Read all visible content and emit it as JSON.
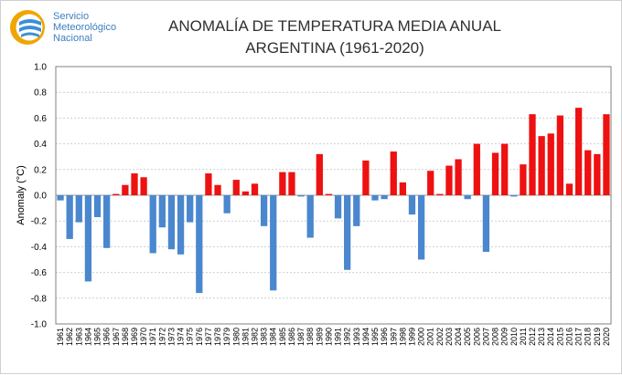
{
  "logo": {
    "line1": "Servicio",
    "line2": "Meteorológico",
    "line3": "Nacional",
    "icon": "smn-logo-icon",
    "colors": {
      "outer": "#f0a500",
      "inner": "#3a8fd6"
    }
  },
  "chart_data": {
    "type": "bar",
    "title_line1": "ANOMALÍA DE TEMPERATURA MEDIA ANUAL",
    "title_line2": "ARGENTINA (1961-2020)",
    "xlabel": "",
    "ylabel": "Anomaly (°C)",
    "ylim": [
      -1.0,
      1.0
    ],
    "yticks": [
      "1.0",
      "0.8",
      "0.6",
      "0.4",
      "0.2",
      "0.0",
      "-0.2",
      "-0.4",
      "-0.6",
      "-0.8",
      "-1.0"
    ],
    "ytick_values": [
      1.0,
      0.8,
      0.6,
      0.4,
      0.2,
      0.0,
      -0.2,
      -0.4,
      -0.6,
      -0.8,
      -1.0
    ],
    "grid": true,
    "categories": [
      "1961",
      "1962",
      "1963",
      "1964",
      "1965",
      "1966",
      "1967",
      "1968",
      "1969",
      "1970",
      "1971",
      "1972",
      "1973",
      "1974",
      "1975",
      "1976",
      "1977",
      "1978",
      "1979",
      "1980",
      "1981",
      "1982",
      "1983",
      "1984",
      "1985",
      "1986",
      "1987",
      "1988",
      "1989",
      "1990",
      "1991",
      "1992",
      "1993",
      "1994",
      "1995",
      "1996",
      "1997",
      "1998",
      "1999",
      "2000",
      "2001",
      "2002",
      "2003",
      "2004",
      "2005",
      "2006",
      "2007",
      "2008",
      "2009",
      "2010",
      "2011",
      "2012",
      "2013",
      "2014",
      "2015",
      "2016",
      "2017",
      "2018",
      "2019",
      "2020"
    ],
    "values": [
      -0.04,
      -0.34,
      -0.21,
      -0.67,
      -0.17,
      -0.41,
      0.01,
      0.08,
      0.17,
      0.14,
      -0.45,
      -0.25,
      -0.42,
      -0.46,
      -0.21,
      -0.76,
      0.17,
      0.08,
      -0.14,
      0.12,
      0.03,
      0.09,
      -0.24,
      -0.74,
      0.18,
      0.18,
      -0.01,
      -0.33,
      0.32,
      0.01,
      -0.18,
      -0.58,
      -0.24,
      0.27,
      -0.04,
      -0.03,
      0.34,
      0.1,
      -0.15,
      -0.5,
      0.19,
      0.01,
      0.23,
      0.28,
      -0.03,
      0.4,
      -0.44,
      0.33,
      0.4,
      -0.01,
      0.24,
      0.63,
      0.46,
      0.48,
      0.62,
      0.09,
      0.68,
      0.35,
      0.32,
      0.63
    ],
    "colors": {
      "positive": "#ee1111",
      "negative": "#4a87cf",
      "grid": "#cfcfcf",
      "axis": "#808080",
      "zero": "#999999"
    }
  }
}
